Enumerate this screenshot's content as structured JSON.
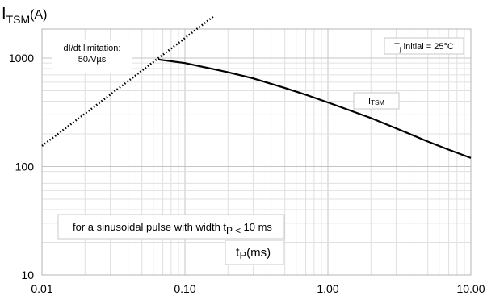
{
  "chart_data": {
    "type": "line",
    "ylabel": {
      "main": "I",
      "sub": "TSM",
      "unit": "(A)"
    },
    "xlabel": {
      "main": "t",
      "sub": "P",
      "unit": "(ms)"
    },
    "x_scale": "log",
    "y_scale": "log",
    "xlim": [
      0.01,
      10
    ],
    "ylim": [
      10,
      2000
    ],
    "x_ticks": [
      0.01,
      0.1,
      1,
      10
    ],
    "x_tick_labels": [
      "0.01",
      "0.10",
      "1.00",
      "10.00"
    ],
    "y_ticks": [
      10,
      100,
      1000
    ],
    "y_tick_labels": [
      "10",
      "100",
      "1000"
    ],
    "grid": true,
    "series": [
      {
        "name": "I",
        "name_sub": "TSM",
        "style": "solid",
        "color": "#000000",
        "x": [
          0.065,
          0.1,
          0.2,
          0.3,
          0.5,
          0.7,
          1.0,
          2.0,
          3.0,
          5.0,
          7.0,
          10.0
        ],
        "y": [
          970,
          900,
          740,
          650,
          530,
          460,
          390,
          280,
          225,
          170,
          143,
          120
        ]
      },
      {
        "name": "dI/dt limitation",
        "style": "dotted",
        "color": "#000000",
        "x": [
          0.01,
          0.03,
          0.06,
          0.1,
          0.16
        ],
        "y": [
          155,
          460,
          920,
          1530,
          2450
        ]
      }
    ],
    "annotations": {
      "didt_line1": "dI/dt limitation:",
      "didt_line2": "50A/µs",
      "tj_text": "T",
      "tj_sub": "j",
      "tj_rest": " initial = 25°C",
      "pulse_text": "for a sinusoidal pulse with width t",
      "pulse_sub": "P < ",
      "pulse_rest": "10 ms"
    }
  }
}
